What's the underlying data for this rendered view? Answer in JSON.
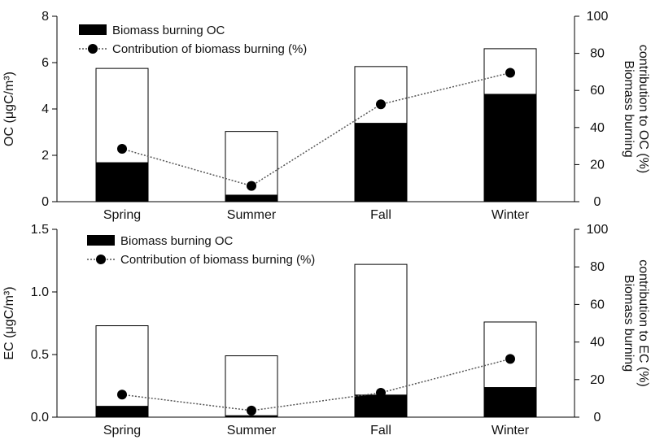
{
  "chart_data": [
    {
      "type": "bar",
      "categories": [
        "Spring",
        "Summer",
        "Fall",
        "Winter"
      ],
      "bars_total": [
        5.75,
        3.03,
        5.83,
        6.6
      ],
      "series": [
        {
          "name": "Biomass burning OC",
          "axis": "left",
          "values": [
            1.7,
            0.3,
            3.4,
            4.65
          ]
        },
        {
          "name": "Contribution of biomass burning (%)",
          "axis": "right",
          "values": [
            28.5,
            8.5,
            52.5,
            69.5
          ]
        }
      ],
      "ylabel": "OC (μgC/m³)",
      "y2label_line1": "Biomass burning",
      "y2label_line2": "contribution to OC (%)",
      "ylim": [
        0,
        8
      ],
      "yticks": [
        "0",
        "2",
        "4",
        "6",
        "8"
      ],
      "y2lim": [
        0,
        100
      ],
      "y2ticks": [
        "0",
        "20",
        "40",
        "60",
        "80",
        "100"
      ],
      "legend_position": "top-left",
      "colors": {
        "filled_bar": "#000000",
        "outline_bar": "#000000",
        "line": "#555555"
      }
    },
    {
      "type": "bar",
      "categories": [
        "Spring",
        "Summer",
        "Fall",
        "Winter"
      ],
      "bars_total": [
        0.73,
        0.49,
        1.22,
        0.76
      ],
      "series": [
        {
          "name": "Biomass burning OC",
          "axis": "left",
          "values": [
            0.09,
            0.015,
            0.18,
            0.24
          ]
        },
        {
          "name": "Contribution of biomass burning (%)",
          "axis": "right",
          "values": [
            12,
            3.5,
            13,
            31
          ]
        }
      ],
      "ylabel": "EC (μgC/m³)",
      "y2label_line1": "Biomass burning",
      "y2label_line2": "contribution to EC (%)",
      "ylim": [
        0,
        1.5
      ],
      "yticks": [
        "0.0",
        "0.5",
        "1.0",
        "1.5"
      ],
      "y2lim": [
        0,
        100
      ],
      "y2ticks": [
        "0",
        "20",
        "40",
        "60",
        "80",
        "100"
      ],
      "legend_position": "top-left",
      "colors": {
        "filled_bar": "#000000",
        "outline_bar": "#000000",
        "line": "#555555"
      }
    }
  ]
}
